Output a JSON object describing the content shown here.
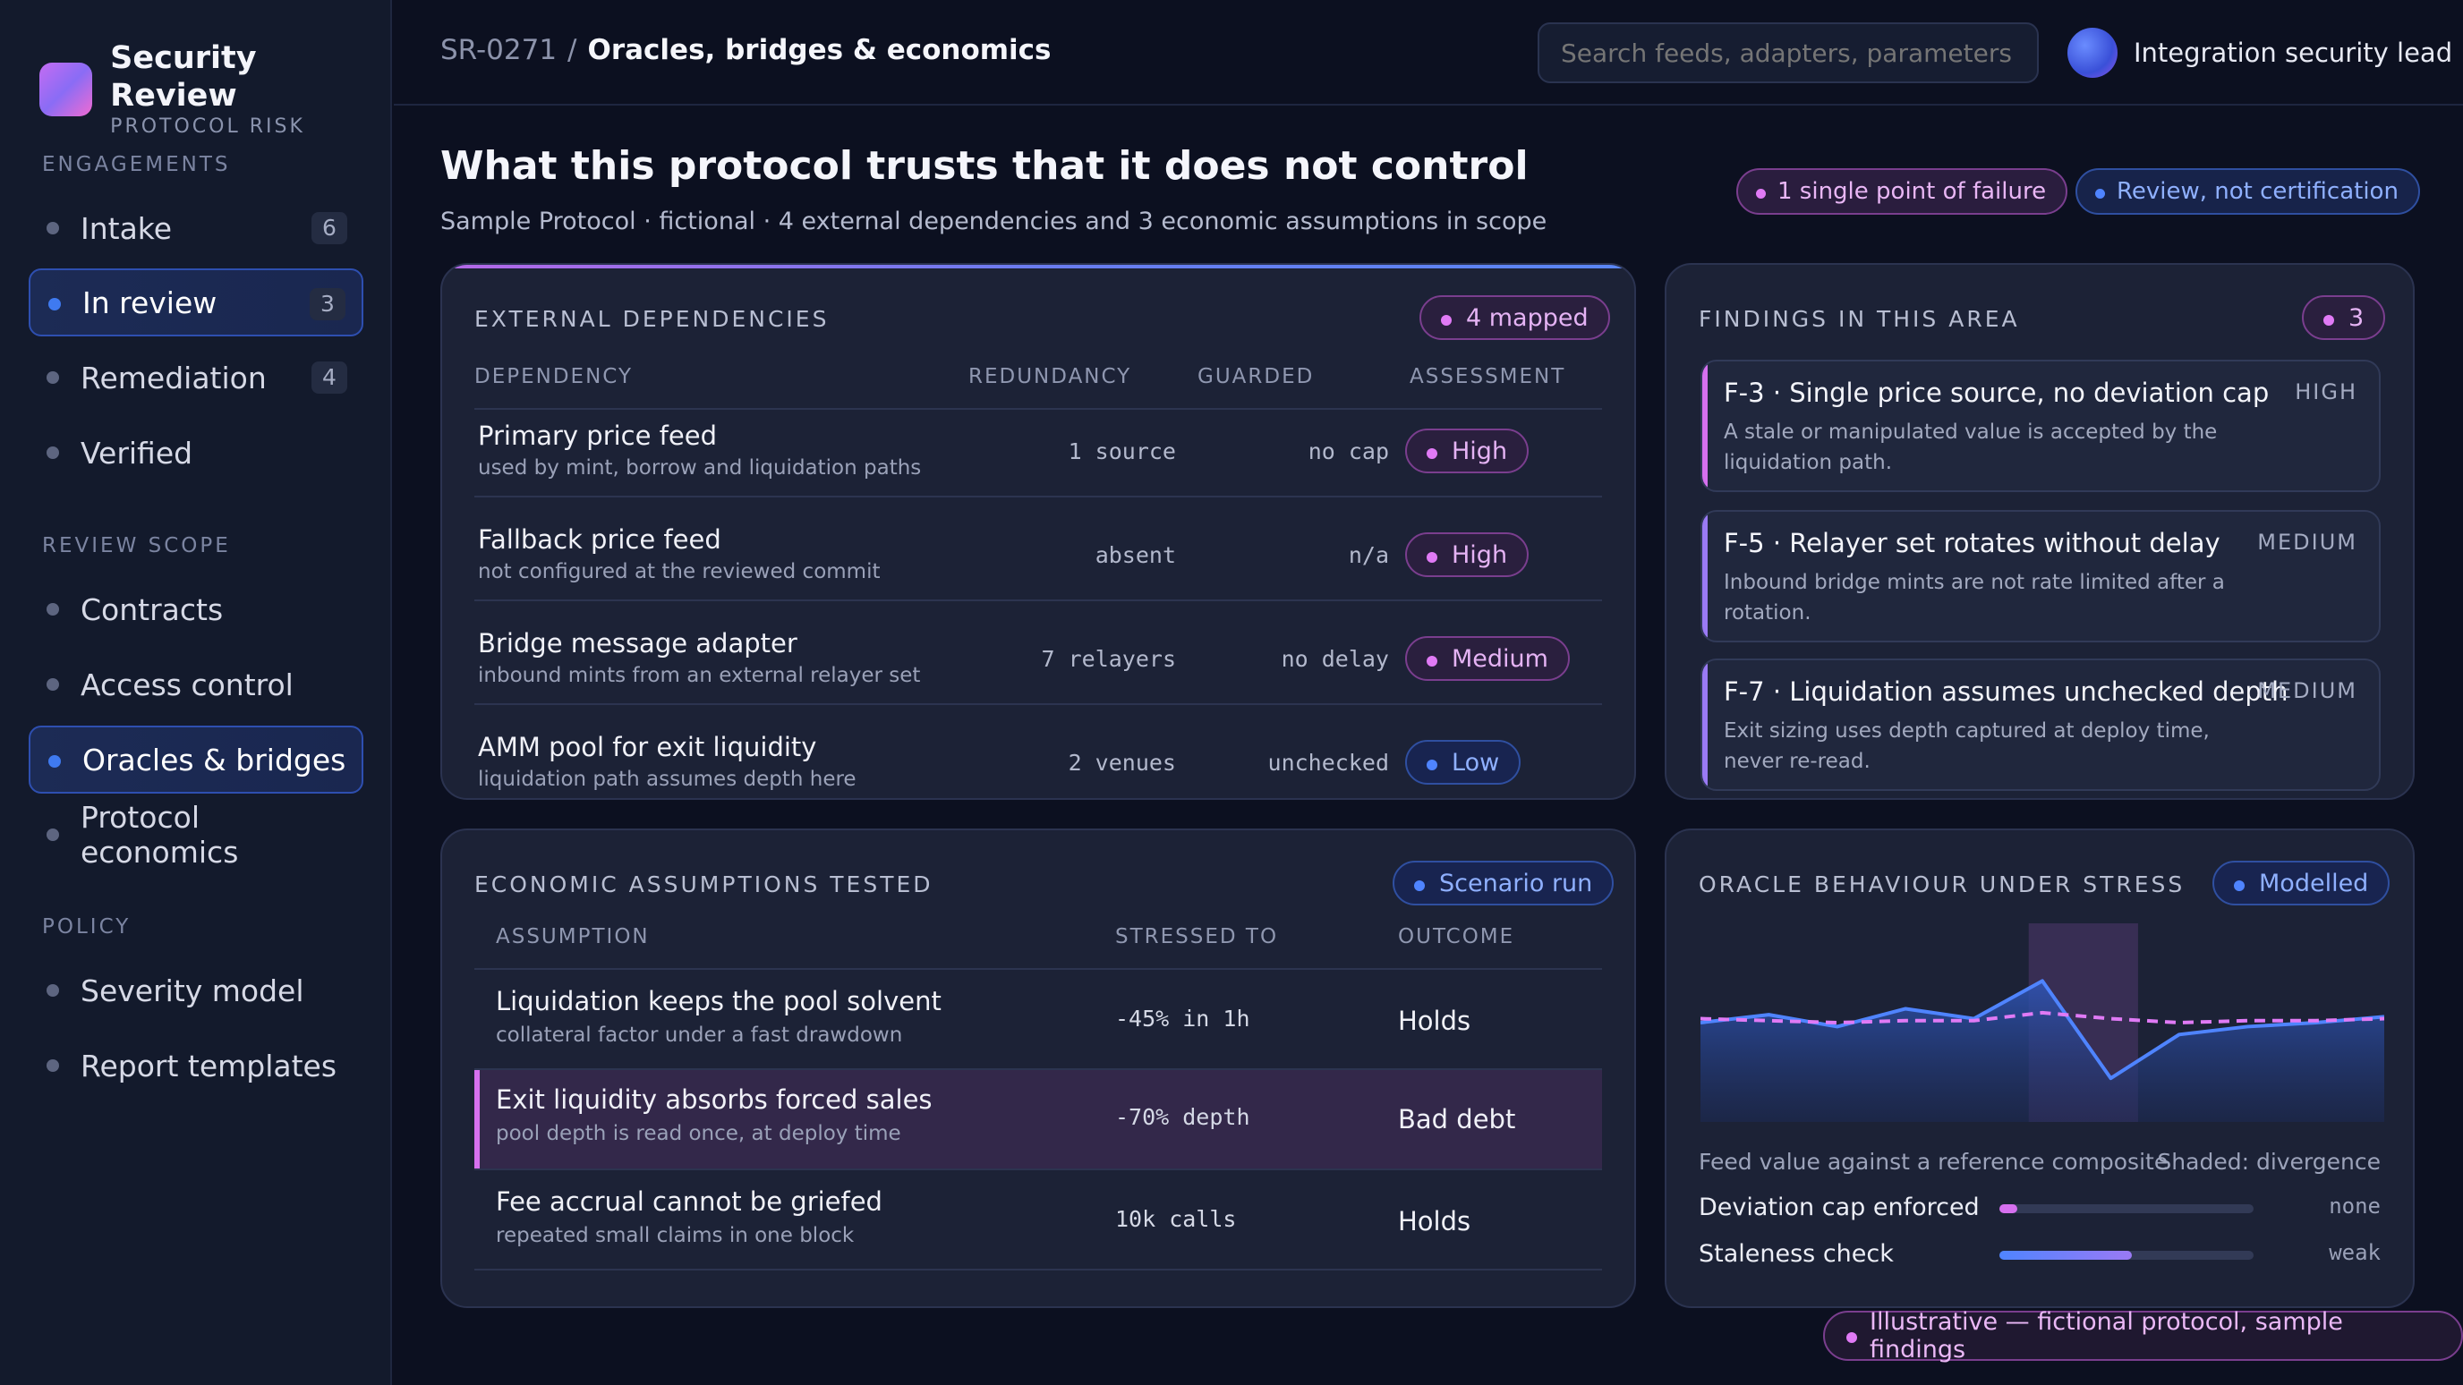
{
  "brand": {
    "title": "Security Review",
    "subtitle": "PROTOCOL RISK"
  },
  "sidebar": {
    "sections": [
      {
        "label": "ENGAGEMENTS"
      },
      {
        "label": "REVIEW SCOPE"
      },
      {
        "label": "POLICY"
      }
    ],
    "items": [
      {
        "label": "Intake",
        "count": "6",
        "active": false
      },
      {
        "label": "In review",
        "count": "3",
        "active": true
      },
      {
        "label": "Remediation",
        "count": "4",
        "active": false
      },
      {
        "label": "Verified",
        "count": "",
        "active": false
      },
      {
        "label": "Contracts",
        "count": "",
        "active": false
      },
      {
        "label": "Access control",
        "count": "",
        "active": false
      },
      {
        "label": "Oracles & bridges",
        "count": "",
        "active": true
      },
      {
        "label": "Protocol economics",
        "count": "",
        "active": false
      },
      {
        "label": "Severity model",
        "count": "",
        "active": false
      },
      {
        "label": "Report templates",
        "count": "",
        "active": false
      }
    ]
  },
  "header": {
    "breadcrumb_id": "SR-0271",
    "breadcrumb_sep": "/",
    "breadcrumb_current": "Oracles, bridges & economics",
    "search_placeholder": "Search feeds, adapters, parameters",
    "user_name": "Integration security lead"
  },
  "page": {
    "title": "What this protocol trusts that it does not control",
    "subtitle": "Sample Protocol · fictional · 4 external dependencies and 3 economic assumptions in scope",
    "pills": [
      "1 single point of failure",
      "Review, not certification"
    ]
  },
  "dependencies": {
    "title": "EXTERNAL DEPENDENCIES",
    "badge": "4 mapped",
    "columns": [
      "DEPENDENCY",
      "REDUNDANCY",
      "GUARDED",
      "ASSESSMENT"
    ],
    "rows": [
      {
        "name": "Primary price feed",
        "note": "used by mint, borrow and liquidation paths",
        "redundancy": "1 source",
        "guarded": "no cap",
        "assessment": "High"
      },
      {
        "name": "Fallback price feed",
        "note": "not configured at the reviewed commit",
        "redundancy": "absent",
        "guarded": "n/a",
        "assessment": "High"
      },
      {
        "name": "Bridge message adapter",
        "note": "inbound mints from an external relayer set",
        "redundancy": "7 relayers",
        "guarded": "no delay",
        "assessment": "Medium"
      },
      {
        "name": "AMM pool for exit liquidity",
        "note": "liquidation path assumes depth here",
        "redundancy": "2 venues",
        "guarded": "unchecked",
        "assessment": "Low"
      }
    ]
  },
  "findings": {
    "title": "FINDINGS IN THIS AREA",
    "badge": "3",
    "items": [
      {
        "title": "F-3 · Single price source, no deviation cap",
        "severity": "HIGH",
        "desc": "A stale or manipulated value is accepted by the liquidation path.",
        "accent": "#d670ef"
      },
      {
        "title": "F-5 · Relayer set rotates without delay",
        "severity": "MEDIUM",
        "desc": "Inbound bridge mints are not rate limited after a rotation.",
        "accent": "#9a7af5"
      },
      {
        "title": "F-7 · Liquidation assumes unchecked depth",
        "severity": "MEDIUM",
        "desc": "Exit sizing uses depth captured at deploy time, never re-read.",
        "accent": "#9a7af5"
      }
    ]
  },
  "assumptions": {
    "title": "ECONOMIC ASSUMPTIONS TESTED",
    "badge": "Scenario run",
    "columns": [
      "ASSUMPTION",
      "STRESSED TO",
      "OUTCOME"
    ],
    "rows": [
      {
        "name": "Liquidation keeps the pool solvent",
        "note": "collateral factor under a fast drawdown",
        "stress": "-45% in 1h",
        "outcome": "Holds"
      },
      {
        "name": "Exit liquidity absorbs forced sales",
        "note": "pool depth is read once, at deploy time",
        "stress": "-70% depth",
        "outcome": "Bad debt"
      },
      {
        "name": "Fee accrual cannot be griefed",
        "note": "repeated small claims in one block",
        "stress": "10k calls",
        "outcome": "Holds"
      }
    ]
  },
  "oracle": {
    "title": "ORACLE BEHAVIOUR UNDER STRESS",
    "badge": "Modelled",
    "legend_left": "Feed value against a reference composite",
    "legend_right": "Shaded: divergence",
    "meters": [
      {
        "label": "Deviation cap enforced",
        "value": "none",
        "fill": 0.07,
        "color": "#d670ef"
      },
      {
        "label": "Staleness check",
        "value": "weak",
        "fill": 0.52,
        "color": "#6a84f5"
      }
    ],
    "chart_data": {
      "type": "line",
      "x": [
        0,
        1,
        2,
        3,
        4,
        5,
        6,
        7,
        8,
        9,
        10
      ],
      "series": [
        {
          "values": [
            50,
            54,
            48,
            57,
            52,
            71,
            22,
            44,
            48,
            50,
            53
          ],
          "color": "#4f84ff",
          "style": "solid"
        },
        {
          "values": [
            52,
            51,
            50,
            51,
            51,
            55,
            52,
            50,
            51,
            51,
            52
          ],
          "color": "#e07af5",
          "style": "dashed"
        }
      ],
      "shaded_range": [
        4.8,
        6.4
      ],
      "ylim": [
        0,
        100
      ]
    }
  },
  "footer": {
    "note": "Illustrative — fictional protocol, sample findings"
  }
}
